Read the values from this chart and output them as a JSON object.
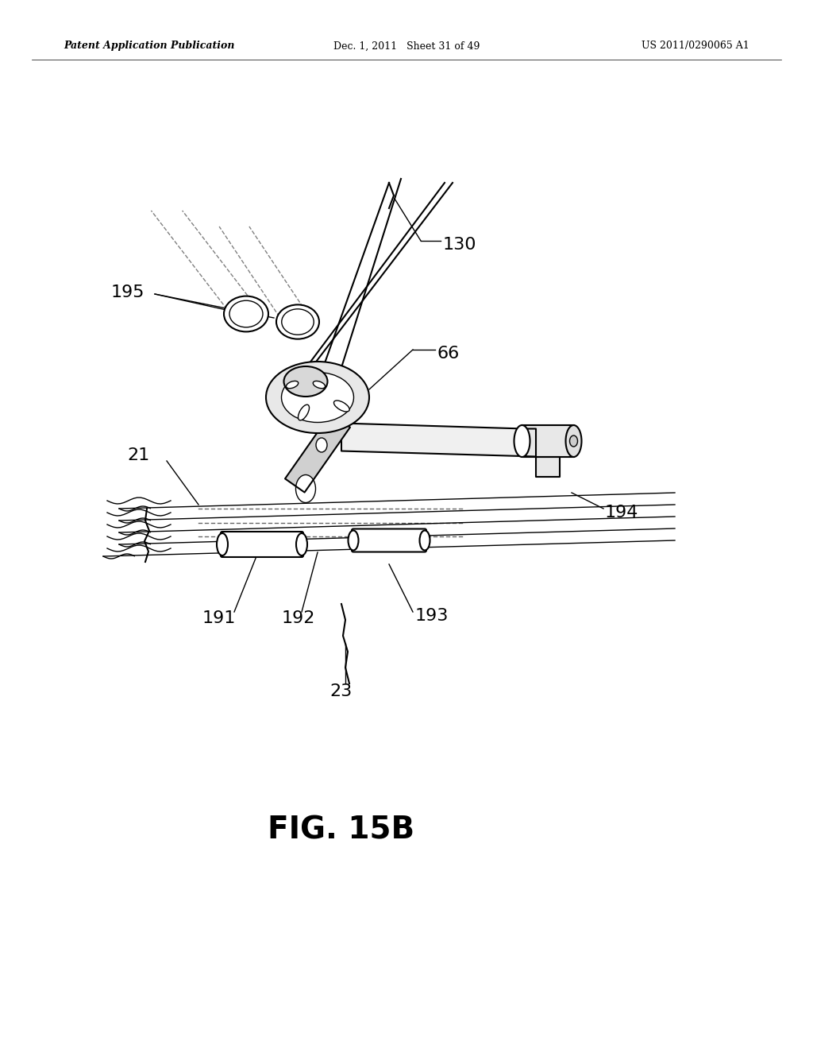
{
  "bg_color": "#ffffff",
  "header_left": "Patent Application Publication",
  "header_center": "Dec. 1, 2011   Sheet 31 of 49",
  "header_right": "US 2011/0290065 A1",
  "fig_label": "FIG. 15B"
}
